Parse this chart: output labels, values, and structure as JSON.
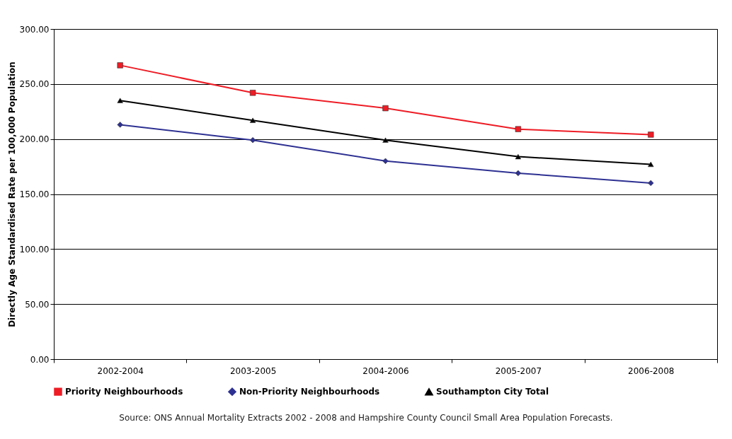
{
  "chart_data": {
    "type": "line",
    "ylabel": "Directly Age Standardised Rate per 100,000 Population",
    "categories": [
      "2002-2004",
      "2003-2005",
      "2004-2006",
      "2005-2007",
      "2006-2008"
    ],
    "series": [
      {
        "name": "Priority Neighbourhoods",
        "color": "#ee1c25",
        "marker": "square",
        "values": [
          267,
          242,
          228,
          209,
          204
        ]
      },
      {
        "name": "Non-Priority Neighbourhoods",
        "color": "#2e3192",
        "marker": "diamond",
        "values": [
          213,
          199,
          180,
          169,
          160
        ]
      },
      {
        "name": "Southampton City Total",
        "color": "#000000",
        "marker": "triangle",
        "values": [
          235,
          217,
          199,
          184,
          177
        ]
      }
    ],
    "ylim": [
      0,
      300
    ],
    "yticks": [
      {
        "value": 0,
        "label": "0.00"
      },
      {
        "value": 50,
        "label": "50.00"
      },
      {
        "value": 100,
        "label": "100.00"
      },
      {
        "value": 150,
        "label": "150.00"
      },
      {
        "value": 200,
        "label": "200.00"
      },
      {
        "value": 250,
        "label": "250.00"
      },
      {
        "value": 300,
        "label": "300.00"
      }
    ],
    "grid": "y",
    "legend": "bottom",
    "line_style": "solid",
    "annotations": [
      "Source: ONS Annual Mortality Extracts 2002 - 2008 and Hampshire County Council Small Area Population Forecasts."
    ]
  }
}
